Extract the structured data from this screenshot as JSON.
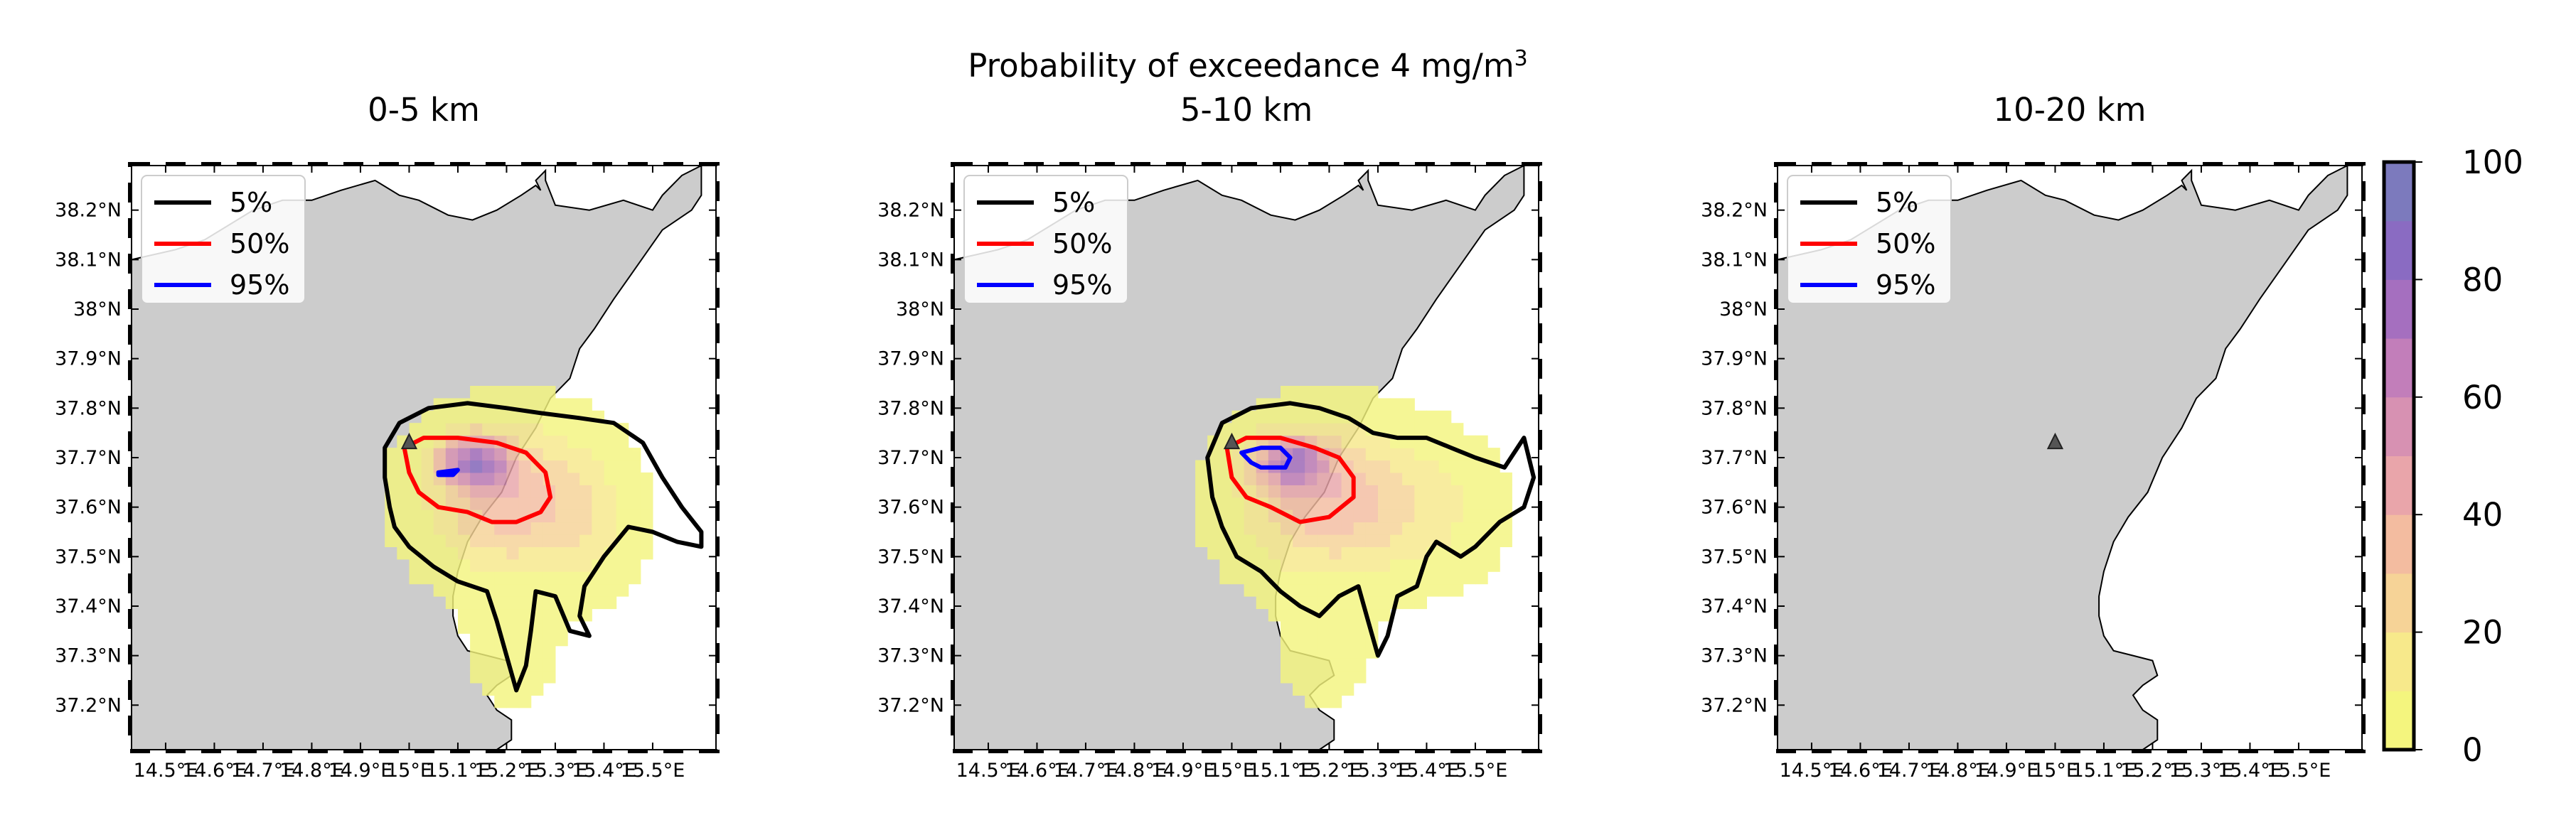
{
  "figure": {
    "suptitle": "Probability of exceedance 4 mg/m",
    "suptitle_superscript": "3"
  },
  "chart_data": {
    "type": "map_heatmap",
    "colorbar": {
      "min": 0,
      "max": 100,
      "ticks": [
        "0",
        "20",
        "40",
        "60",
        "80",
        "100"
      ],
      "colors": [
        "#f4f57e",
        "#f7e98b",
        "#f6d397",
        "#f3bca0",
        "#e9a5aa",
        "#d791b2",
        "#c27eba",
        "#a56fbf",
        "#8a6bc2",
        "#7c7abd"
      ]
    },
    "x_ticks": [
      "14.5°E",
      "14.6°E",
      "14.7°E",
      "14.8°E",
      "14.9°E",
      "15°E",
      "15.1°E",
      "15.2°E",
      "15.3°E",
      "15.4°E",
      "15.5°E"
    ],
    "y_ticks": [
      "38.2°N",
      "38.1°N",
      "38°N",
      "37.9°N",
      "37.8°N",
      "37.7°N",
      "37.6°N",
      "37.5°N",
      "37.4°N",
      "37.3°N",
      "37.2°N"
    ],
    "xlim": [
      14.43,
      15.63
    ],
    "ylim": [
      37.11,
      38.29
    ],
    "land_color": "#cccccc",
    "legend": {
      "placement": "upper-left",
      "entries": [
        {
          "label": "5%",
          "color": "#000000"
        },
        {
          "label": "50%",
          "color": "#ff0000"
        },
        {
          "label": "95%",
          "color": "#0000ff"
        }
      ]
    },
    "vent": {
      "lon": 15.0,
      "lat": 37.73
    },
    "panels": [
      {
        "title": "0-5 km",
        "blobs": [
          {
            "lon": 15.2,
            "lat": 37.6,
            "sx": 0.15,
            "sy": 0.13,
            "amp": 38
          },
          {
            "lon": 15.12,
            "lat": 37.68,
            "sx": 0.07,
            "sy": 0.05,
            "amp": 65
          },
          {
            "lon": 15.36,
            "lat": 37.55,
            "sx": 0.08,
            "sy": 0.12,
            "amp": 10
          },
          {
            "lon": 15.2,
            "lat": 37.3,
            "sx": 0.08,
            "sy": 0.1,
            "amp": 6
          }
        ],
        "contours": [
          {
            "level": "5%",
            "color": "#000000",
            "points": [
              [
                14.98,
                37.77
              ],
              [
                15.04,
                37.8
              ],
              [
                15.12,
                37.81
              ],
              [
                15.2,
                37.8
              ],
              [
                15.27,
                37.79
              ],
              [
                15.35,
                37.78
              ],
              [
                15.42,
                37.77
              ],
              [
                15.48,
                37.73
              ],
              [
                15.52,
                37.66
              ],
              [
                15.56,
                37.6
              ],
              [
                15.6,
                37.55
              ],
              [
                15.6,
                37.52
              ],
              [
                15.55,
                37.53
              ],
              [
                15.5,
                37.55
              ],
              [
                15.45,
                37.56
              ],
              [
                15.4,
                37.5
              ],
              [
                15.36,
                37.44
              ],
              [
                15.35,
                37.38
              ],
              [
                15.37,
                37.34
              ],
              [
                15.33,
                37.35
              ],
              [
                15.3,
                37.42
              ],
              [
                15.26,
                37.43
              ],
              [
                15.25,
                37.35
              ],
              [
                15.24,
                37.28
              ],
              [
                15.22,
                37.23
              ],
              [
                15.2,
                37.3
              ],
              [
                15.18,
                37.37
              ],
              [
                15.16,
                37.43
              ],
              [
                15.1,
                37.45
              ],
              [
                15.05,
                37.48
              ],
              [
                15.0,
                37.52
              ],
              [
                14.97,
                37.56
              ],
              [
                14.96,
                37.6
              ],
              [
                14.95,
                37.66
              ],
              [
                14.95,
                37.72
              ]
            ]
          },
          {
            "level": "50%",
            "color": "#ff0000",
            "points": [
              [
                14.99,
                37.72
              ],
              [
                15.03,
                37.74
              ],
              [
                15.1,
                37.74
              ],
              [
                15.18,
                37.73
              ],
              [
                15.24,
                37.71
              ],
              [
                15.28,
                37.67
              ],
              [
                15.29,
                37.62
              ],
              [
                15.27,
                37.59
              ],
              [
                15.22,
                37.57
              ],
              [
                15.17,
                37.57
              ],
              [
                15.12,
                37.59
              ],
              [
                15.06,
                37.6
              ],
              [
                15.02,
                37.63
              ],
              [
                15.0,
                37.67
              ]
            ]
          },
          {
            "level": "95%",
            "color": "#0000ff",
            "points": [
              [
                15.06,
                37.67
              ],
              [
                15.1,
                37.675
              ],
              [
                15.09,
                37.665
              ],
              [
                15.06,
                37.665
              ]
            ]
          }
        ]
      },
      {
        "title": "5-10 km",
        "blobs": [
          {
            "lon": 15.19,
            "lat": 37.6,
            "sx": 0.16,
            "sy": 0.13,
            "amp": 38
          },
          {
            "lon": 15.11,
            "lat": 37.68,
            "sx": 0.07,
            "sy": 0.05,
            "amp": 60
          },
          {
            "lon": 15.4,
            "lat": 37.58,
            "sx": 0.12,
            "sy": 0.12,
            "amp": 10
          },
          {
            "lon": 15.18,
            "lat": 37.3,
            "sx": 0.08,
            "sy": 0.1,
            "amp": 6
          }
        ],
        "contours": [
          {
            "level": "5%",
            "color": "#000000",
            "points": [
              [
                14.98,
                37.77
              ],
              [
                15.04,
                37.8
              ],
              [
                15.12,
                37.81
              ],
              [
                15.18,
                37.8
              ],
              [
                15.24,
                37.78
              ],
              [
                15.29,
                37.75
              ],
              [
                15.34,
                37.74
              ],
              [
                15.4,
                37.74
              ],
              [
                15.45,
                37.72
              ],
              [
                15.5,
                37.7
              ],
              [
                15.56,
                37.68
              ],
              [
                15.6,
                37.74
              ],
              [
                15.62,
                37.66
              ],
              [
                15.6,
                37.6
              ],
              [
                15.55,
                37.57
              ],
              [
                15.5,
                37.52
              ],
              [
                15.47,
                37.5
              ],
              [
                15.42,
                37.53
              ],
              [
                15.4,
                37.5
              ],
              [
                15.38,
                37.44
              ],
              [
                15.34,
                37.42
              ],
              [
                15.32,
                37.34
              ],
              [
                15.3,
                37.3
              ],
              [
                15.28,
                37.37
              ],
              [
                15.26,
                37.44
              ],
              [
                15.22,
                37.42
              ],
              [
                15.18,
                37.38
              ],
              [
                15.14,
                37.4
              ],
              [
                15.1,
                37.43
              ],
              [
                15.06,
                37.47
              ],
              [
                15.01,
                37.5
              ],
              [
                14.98,
                37.56
              ],
              [
                14.96,
                37.62
              ],
              [
                14.95,
                37.7
              ]
            ]
          },
          {
            "level": "50%",
            "color": "#ff0000",
            "points": [
              [
                14.99,
                37.72
              ],
              [
                15.03,
                37.74
              ],
              [
                15.1,
                37.74
              ],
              [
                15.17,
                37.72
              ],
              [
                15.22,
                37.7
              ],
              [
                15.25,
                37.66
              ],
              [
                15.25,
                37.62
              ],
              [
                15.2,
                37.58
              ],
              [
                15.14,
                37.57
              ],
              [
                15.08,
                37.6
              ],
              [
                15.03,
                37.62
              ],
              [
                15.0,
                37.66
              ]
            ]
          },
          {
            "level": "95%",
            "color": "#0000ff",
            "points": [
              [
                15.02,
                37.71
              ],
              [
                15.06,
                37.72
              ],
              [
                15.1,
                37.72
              ],
              [
                15.12,
                37.7
              ],
              [
                15.11,
                37.68
              ],
              [
                15.06,
                37.68
              ],
              [
                15.04,
                37.69
              ]
            ]
          }
        ]
      },
      {
        "title": "10-20 km",
        "blobs": [],
        "contours": []
      }
    ]
  }
}
